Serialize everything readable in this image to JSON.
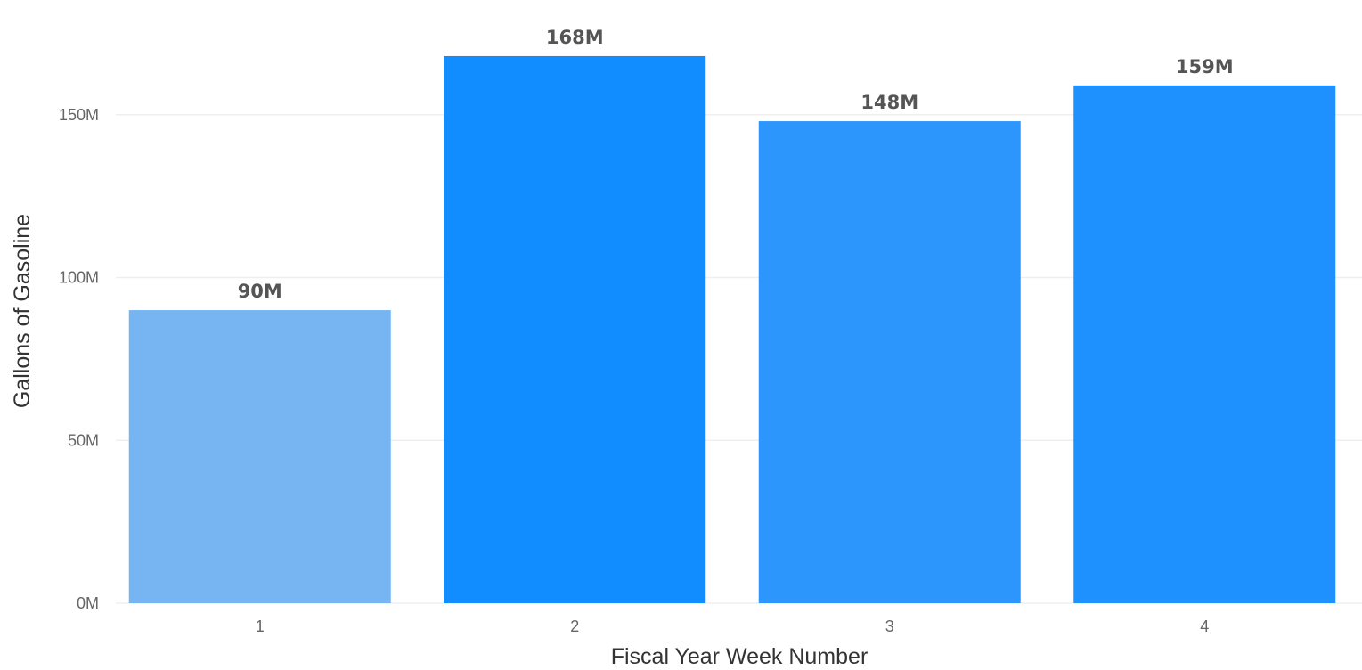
{
  "chart_data": {
    "type": "bar",
    "title": "",
    "xlabel": "Fiscal Year Week Number",
    "ylabel": "Gallons of Gasoline",
    "categories": [
      "1",
      "2",
      "3",
      "4"
    ],
    "values": [
      90,
      168,
      148,
      159
    ],
    "value_unit_suffix": "M",
    "data_labels": [
      "90M",
      "168M",
      "148M",
      "159M"
    ],
    "bar_colors": [
      "#76b4f2",
      "#118dff",
      "#2d96fc",
      "#1f91fe"
    ],
    "ylim": [
      0,
      168
    ],
    "yticks": [
      0,
      50,
      100,
      150
    ],
    "ytick_labels": [
      "0M",
      "50M",
      "100M",
      "150M"
    ],
    "grid": true,
    "legend": "none"
  }
}
